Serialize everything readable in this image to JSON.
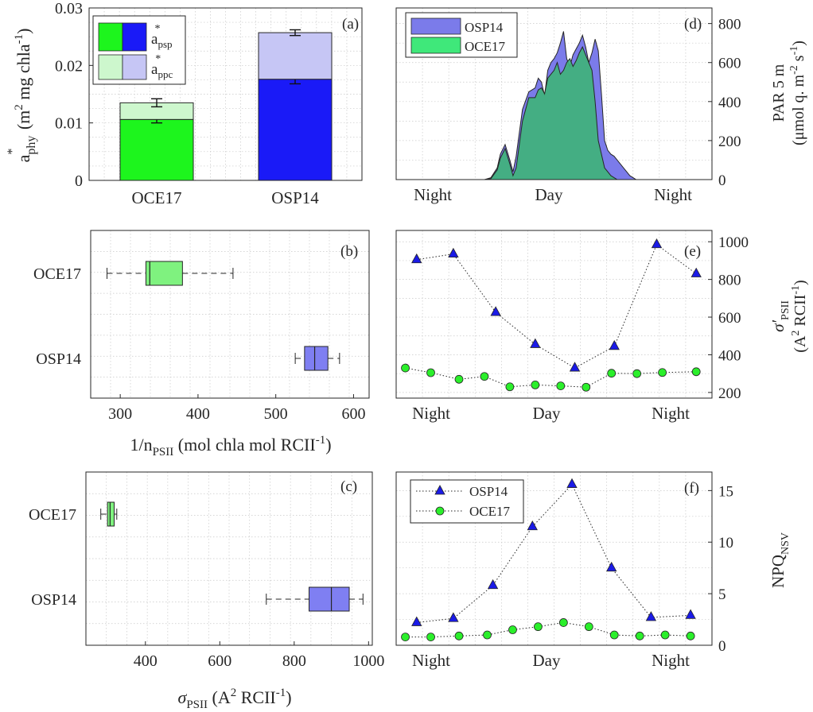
{
  "chart_data": [
    {
      "panel": "(a)",
      "type": "bar",
      "stacked": true,
      "categories": [
        "OCE17",
        "OSP14"
      ],
      "series": [
        {
          "legend_main": "a",
          "legend_sup": "*",
          "legend_sub": "psp",
          "values": [
            0.0106,
            0.0176
          ],
          "errors": [
            0.0006,
            0.0008
          ],
          "colors": [
            "#1df51d",
            "#1a1af7"
          ]
        },
        {
          "legend_main": "a",
          "legend_sup": "*",
          "legend_sub": "ppc",
          "values": [
            0.0029,
            0.0081
          ],
          "errors": [
            0.0007,
            0.0005
          ],
          "colors": [
            "#cdf7cd",
            "#c6c6f5"
          ]
        }
      ],
      "ylabel_main": "a",
      "ylabel_sup": "*",
      "ylabel_sub": "phy",
      "ylabel_rest": " (m",
      "ylabel_sup2": "2",
      "ylabel_rest2": " mg chla",
      "ylabel_sup3": "-1",
      "ylabel_end": ")",
      "ylim": [
        0,
        0.03
      ],
      "yticks": [
        "0",
        "0.01",
        "0.02",
        "0.03"
      ],
      "grid": true
    },
    {
      "panel": "(b)",
      "type": "boxplot",
      "orientation": "horizontal",
      "categories": [
        "OCE17",
        "OSP14"
      ],
      "boxes": [
        {
          "name": "OCE17",
          "whisker_low": 283,
          "q1": 333,
          "median": 338,
          "q3": 380,
          "whisker_high": 445,
          "color": "#7ff27f"
        },
        {
          "name": "OSP14",
          "whisker_low": 525,
          "q1": 537,
          "median": 550,
          "q3": 567,
          "whisker_high": 582,
          "color": "#7f7ff2"
        }
      ],
      "xlim": [
        262,
        620
      ],
      "xticks": [
        300,
        400,
        500,
        600
      ],
      "xlabel_main": "1/n",
      "xlabel_sub": "PSII",
      "xlabel_rest": " (mol chla mol RCII",
      "xlabel_sup": "-1",
      "xlabel_end": ")",
      "grid": true
    },
    {
      "panel": "(c)",
      "type": "boxplot",
      "orientation": "horizontal",
      "categories": [
        "OCE17",
        "OSP14"
      ],
      "boxes": [
        {
          "name": "OCE17",
          "whisker_low": 280,
          "q1": 298,
          "median": 305,
          "q3": 316,
          "whisker_high": 323,
          "color": "#7ff27f"
        },
        {
          "name": "OSP14",
          "whisker_low": 725,
          "q1": 840,
          "median": 900,
          "q3": 948,
          "whisker_high": 985,
          "color": "#7f7ff2"
        }
      ],
      "xlim": [
        240,
        1010
      ],
      "xticks": [
        400,
        600,
        800,
        1000
      ],
      "xlabel_main": "σ",
      "xlabel_sub": "PSII",
      "xlabel_rest": " (A",
      "xlabel_sup": "2",
      "xlabel_rest2": " RCII",
      "xlabel_sup2": "-1",
      "xlabel_end": ")",
      "grid": true
    },
    {
      "panel": "(d)",
      "type": "area",
      "x_tick_labels": [
        "Night",
        "Day",
        "Night"
      ],
      "ylabel_line1": "PAR 5 m",
      "ylabel_line2_pre": "(μmol q. m",
      "ylabel_sup": "-2",
      "ylabel_mid": " s",
      "ylabel_sup2": "-1",
      "ylabel_end": ")",
      "ylim": [
        0,
        880
      ],
      "yticks": [
        0,
        200,
        400,
        600,
        800
      ],
      "legend": "top-left",
      "series": [
        {
          "name": "OSP14",
          "color": "#7b7bea",
          "x": [
            0,
            0.28,
            0.3,
            0.32,
            0.33,
            0.345,
            0.36,
            0.37,
            0.38,
            0.4,
            0.42,
            0.44,
            0.45,
            0.46,
            0.47,
            0.48,
            0.49,
            0.5,
            0.51,
            0.52,
            0.53,
            0.54,
            0.55,
            0.56,
            0.57,
            0.58,
            0.59,
            0.6,
            0.61,
            0.62,
            0.63,
            0.64,
            0.65,
            0.66,
            0.67,
            0.68,
            0.69,
            0.7,
            0.72,
            0.74,
            0.76,
            1
          ],
          "y": [
            0,
            0,
            10,
            60,
            130,
            180,
            100,
            40,
            120,
            360,
            450,
            470,
            520,
            500,
            430,
            560,
            600,
            620,
            650,
            700,
            760,
            620,
            580,
            640,
            670,
            700,
            740,
            680,
            600,
            650,
            720,
            660,
            440,
            200,
            150,
            130,
            120,
            100,
            60,
            20,
            0,
            0
          ]
        },
        {
          "name": "OCE17",
          "color": "#3fb27a",
          "x": [
            0,
            0.28,
            0.3,
            0.32,
            0.33,
            0.345,
            0.36,
            0.37,
            0.38,
            0.4,
            0.42,
            0.44,
            0.45,
            0.46,
            0.47,
            0.48,
            0.49,
            0.5,
            0.51,
            0.52,
            0.53,
            0.54,
            0.55,
            0.56,
            0.57,
            0.58,
            0.59,
            0.6,
            0.61,
            0.62,
            0.63,
            0.64,
            0.66,
            0.68,
            0.7,
            1
          ],
          "y": [
            0,
            0,
            5,
            50,
            110,
            160,
            80,
            20,
            60,
            300,
            420,
            420,
            460,
            470,
            440,
            520,
            540,
            560,
            600,
            540,
            560,
            600,
            620,
            580,
            610,
            650,
            680,
            640,
            600,
            560,
            400,
            200,
            60,
            20,
            0,
            0
          ]
        }
      ],
      "grid": true
    },
    {
      "panel": "(e)",
      "type": "line",
      "x_tick_labels": [
        "Night",
        "Day",
        "Night"
      ],
      "ylabel_main": "σ′",
      "ylabel_sub": "PSII",
      "ylabel2_pre": "(A",
      "ylabel2_sup": "2",
      "ylabel2_mid": " RCII",
      "ylabel2_sup2": "-1",
      "ylabel2_end": ")",
      "ylim": [
        170,
        1060
      ],
      "yticks": [
        200,
        400,
        600,
        800,
        1000
      ],
      "series": [
        {
          "name": "OSP14",
          "marker": "triangle",
          "color": "#1a1ae6",
          "x": [
            0.05,
            0.18,
            0.33,
            0.47,
            0.61,
            0.75,
            0.9,
            1.04
          ],
          "y": [
            905,
            935,
            625,
            455,
            330,
            445,
            985,
            830
          ]
        },
        {
          "name": "OCE17",
          "marker": "circle",
          "color": "#2bef2b",
          "x": [
            0.01,
            0.1,
            0.2,
            0.29,
            0.38,
            0.47,
            0.56,
            0.65,
            0.74,
            0.83,
            0.92,
            1.04
          ],
          "y": [
            330,
            305,
            270,
            285,
            230,
            240,
            235,
            228,
            302,
            300,
            306,
            310
          ]
        }
      ],
      "grid": true
    },
    {
      "panel": "(f)",
      "type": "line",
      "x_tick_labels": [
        "Night",
        "Day",
        "Night"
      ],
      "ylabel_main": "NPQ",
      "ylabel_sub": "NSV",
      "ylim": [
        0,
        16.8
      ],
      "yticks": [
        0,
        5,
        10,
        15
      ],
      "legend": "top-left",
      "series": [
        {
          "name": "OSP14",
          "marker": "triangle",
          "color": "#1a1ae6",
          "x": [
            0.05,
            0.18,
            0.32,
            0.46,
            0.6,
            0.74,
            0.88,
            1.02
          ],
          "y": [
            2.2,
            2.6,
            5.8,
            11.5,
            15.6,
            7.5,
            2.7,
            2.9
          ]
        },
        {
          "name": "OCE17",
          "marker": "circle",
          "color": "#2bef2b",
          "x": [
            0.01,
            0.1,
            0.2,
            0.3,
            0.39,
            0.48,
            0.57,
            0.66,
            0.75,
            0.84,
            0.93,
            1.02
          ],
          "y": [
            0.8,
            0.8,
            0.9,
            1.0,
            1.5,
            1.8,
            2.2,
            1.8,
            1.0,
            0.9,
            1.0,
            0.9
          ]
        }
      ],
      "grid": true
    }
  ]
}
